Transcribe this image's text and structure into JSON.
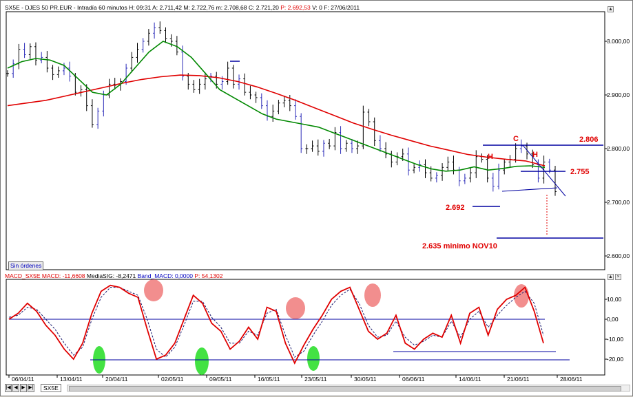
{
  "header": {
    "symbol": "SX5E",
    "name": "DJES 50 PR.EUR",
    "interval": "Intradía 60 minutos",
    "time": "H: 09:31",
    "open": "A: 2.711,42",
    "high": "M: 2.722,76",
    "low": "m: 2.708,68",
    "close": "C: 2.721,20",
    "price": "P: 2.692,53",
    "volume": "V: 0",
    "date": "F: 27/06/2011"
  },
  "macd_header": {
    "macd": "MACD_SX5E MACD: -11,6608",
    "signal": "MediaSIG: -8,2471",
    "band": "Band_MACD: 0,0000",
    "price": "P: 54,1302"
  },
  "colors": {
    "price_bars_dark": "#000000",
    "price_bars_blue": "#2a2ab8",
    "ma_long": "#e00000",
    "ma_short": "#008800",
    "annotation": "#e00000",
    "levels": "#0000a0",
    "macd": "#e00000",
    "signal": "#1a1a6e",
    "marker_pink": "#f07a7a",
    "marker_green": "#22dd22"
  },
  "no_orders_label": "Sin órdenes",
  "tab_label": "SX5E",
  "annotations": {
    "level_2806": "2.806",
    "level_2755": "2.755",
    "level_2692": "2.692",
    "level_2635": "2.635 minimo NOV10",
    "c_label": "C",
    "h1_label": "H",
    "h2_label": "H"
  },
  "chart_data": [
    {
      "type": "candlestick",
      "title": "",
      "x_ticks": [
        "06/04/11",
        "13/04/11",
        "20/04/11",
        "02/05/11",
        "09/05/11",
        "16/05/11",
        "23/05/11",
        "30/05/11",
        "06/06/11",
        "14/06/11",
        "21/06/11",
        "28/06/11"
      ],
      "y_ticks": [
        "3.000,00",
        "2.900,00",
        "2.800,00",
        "2.700,00",
        "2.600,00"
      ],
      "ylim": [
        2575,
        3065
      ],
      "series": [
        {
          "name": "",
          "type": "bar",
          "values": [
            2940,
            2958,
            2985,
            2975,
            2990,
            2965,
            2970,
            2950,
            2938,
            2945,
            2950,
            2935,
            2905,
            2910,
            2880,
            2845,
            2870,
            2900,
            2920,
            2918,
            2925,
            2950,
            2970,
            2985,
            3000,
            3015,
            3025,
            3020,
            3005,
            3000,
            2980,
            2935,
            2920,
            2910,
            2920,
            2930,
            2935,
            2920,
            2925,
            2950,
            2920,
            2930,
            2905,
            2900,
            2895,
            2880,
            2860,
            2870,
            2885,
            2890,
            2880,
            2860,
            2800,
            2800,
            2805,
            2795,
            2810,
            2805,
            2830,
            2800,
            2810,
            2800,
            2805,
            2868,
            2850,
            2815,
            2800,
            2790,
            2775,
            2785,
            2790,
            2760,
            2765,
            2770,
            2755,
            2745,
            2750,
            2765,
            2775,
            2760,
            2740,
            2745,
            2755,
            2785,
            2780,
            2745,
            2730,
            2760,
            2775,
            2780,
            2800,
            2805,
            2790,
            2770,
            2745,
            2775,
            2760,
            2720
          ]
        },
        {
          "name": "",
          "type": "line",
          "values": [
            2950,
            2962,
            2968,
            2965,
            2955,
            2930,
            2905,
            2900,
            2920,
            2950,
            2980,
            3000,
            2990,
            2970,
            2940,
            2910,
            2895,
            2880,
            2865,
            2855,
            2850,
            2845,
            2840,
            2830,
            2820,
            2810,
            2800,
            2790,
            2780,
            2770,
            2762,
            2758,
            2760,
            2766,
            2760,
            2763,
            2767,
            2768,
            2765
          ]
        },
        {
          "name": "",
          "type": "line",
          "values": [
            2880,
            2885,
            2890,
            2898,
            2906,
            2914,
            2922,
            2929,
            2934,
            2937,
            2936,
            2932,
            2925,
            2915,
            2903,
            2890,
            2876,
            2862,
            2848,
            2836,
            2825,
            2815,
            2805,
            2797,
            2789,
            2784,
            2780,
            2777,
            2768
          ]
        }
      ]
    },
    {
      "type": "line",
      "title": "",
      "y_ticks": [
        "10,00",
        "0,00",
        "-10,00",
        "-20,00"
      ],
      "ylim": [
        -25,
        26
      ],
      "series": [
        {
          "name": "",
          "values": [
            0,
            3,
            8,
            4,
            -3,
            -8,
            -15,
            -20,
            -12,
            3,
            14,
            17,
            16,
            13,
            11,
            -5,
            -20,
            -18,
            -12,
            0,
            12,
            8,
            -2,
            -6,
            -15,
            -11,
            -4,
            -10,
            6,
            4,
            -12,
            -22,
            -13,
            -5,
            2,
            10,
            14,
            16,
            5,
            -6,
            -10,
            -7,
            2,
            -12,
            -15,
            -10,
            -7,
            -9,
            2,
            -12,
            3,
            6,
            -8,
            5,
            10,
            12,
            16,
            4,
            -12
          ]
        },
        {
          "name": "",
          "values": [
            1,
            2,
            6,
            5,
            0,
            -5,
            -12,
            -18,
            -14,
            0,
            11,
            16,
            16,
            14,
            12,
            0,
            -15,
            -19,
            -14,
            -3,
            9,
            9,
            1,
            -4,
            -12,
            -12,
            -6,
            -8,
            3,
            5,
            -8,
            -19,
            -16,
            -8,
            -1,
            7,
            12,
            15,
            8,
            -3,
            -9,
            -8,
            -1,
            -9,
            -13,
            -11,
            -8,
            -9,
            -1,
            -9,
            0,
            4,
            -4,
            2,
            7,
            11,
            14,
            8,
            -8
          ]
        }
      ]
    }
  ]
}
